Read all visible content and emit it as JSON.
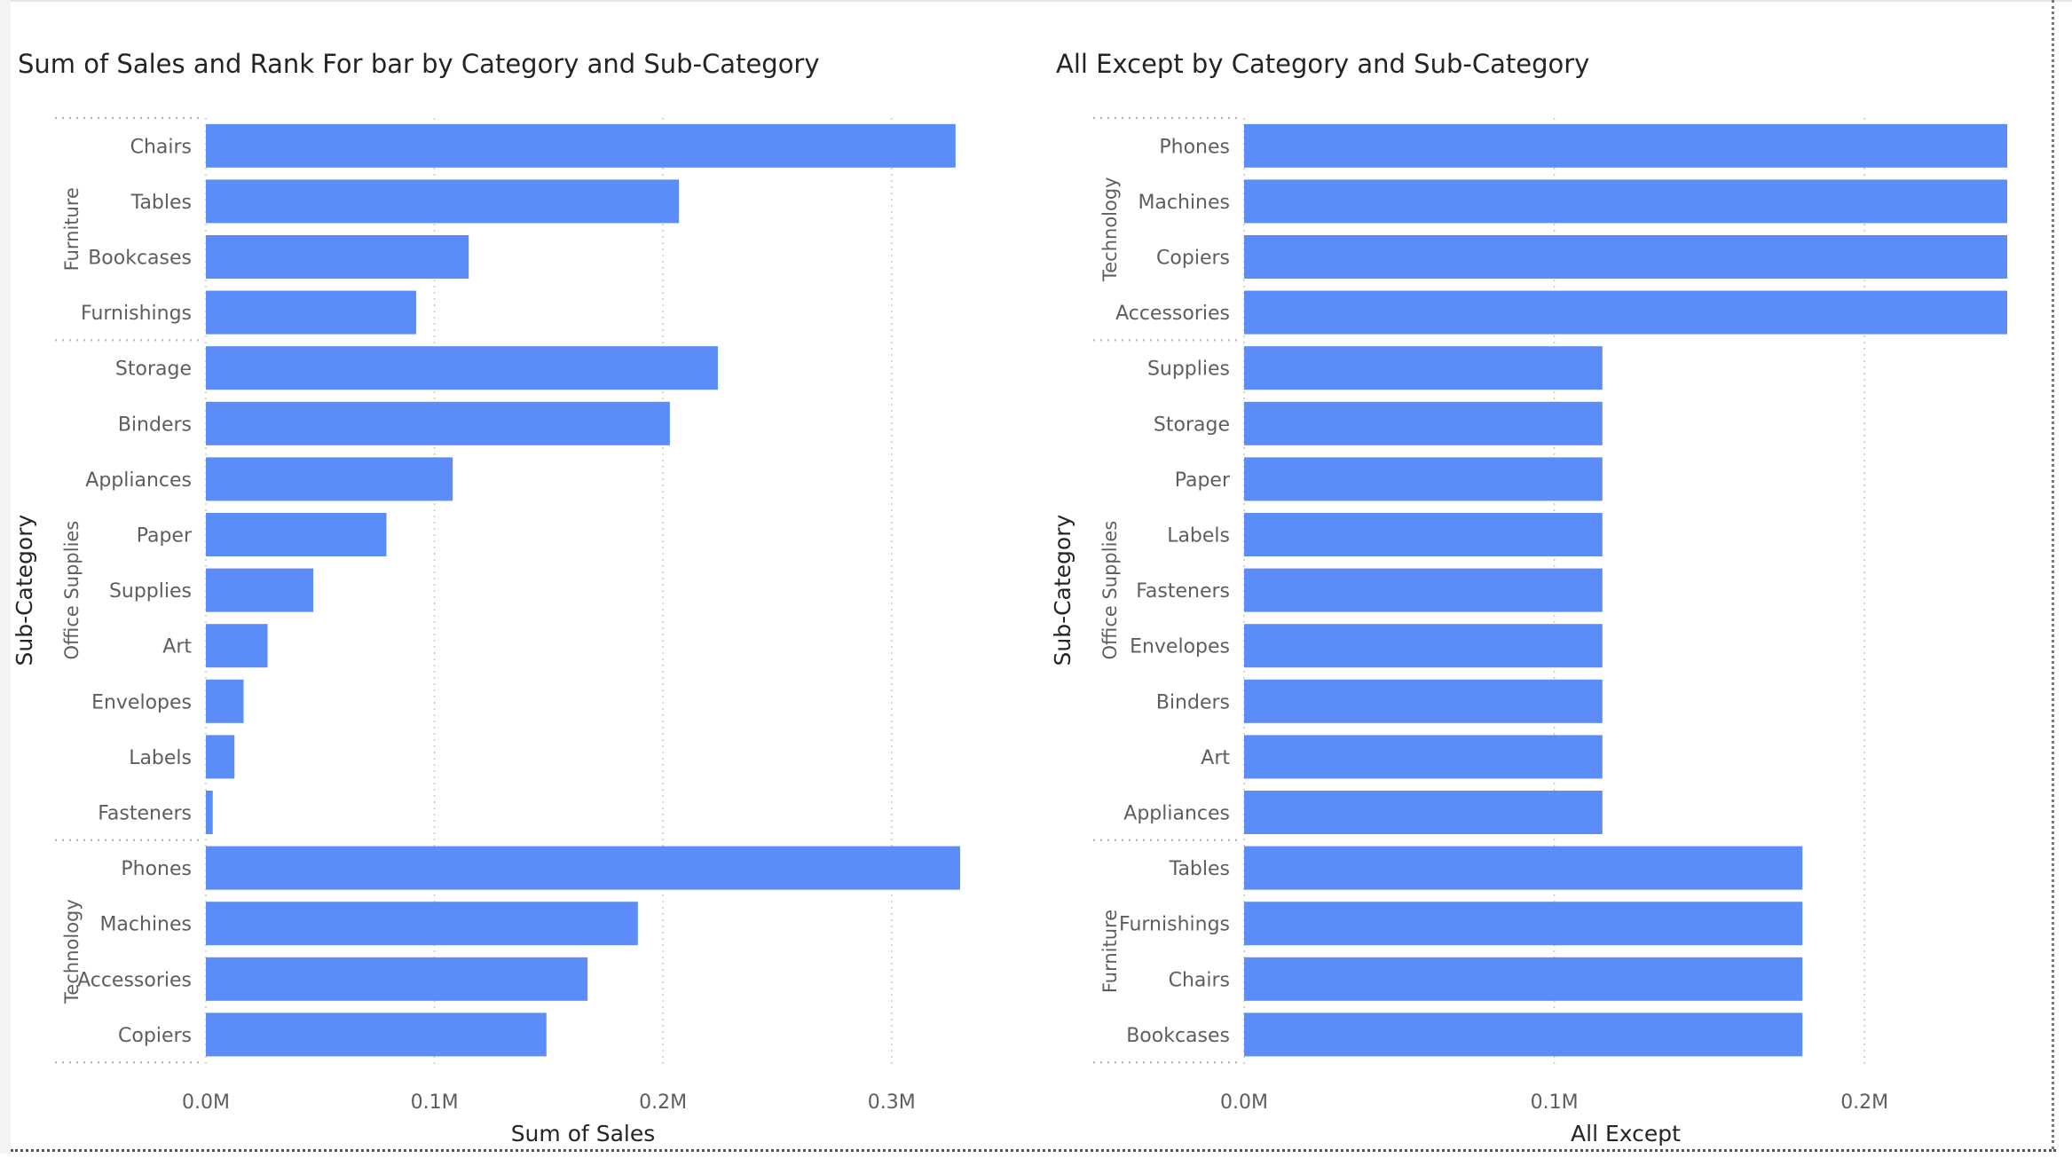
{
  "colors": {
    "bar": "#5b8cf7",
    "text_dark": "#252423",
    "text_label": "#605e5c",
    "grid": "#c8c6c4",
    "divider": "#b3b0ad"
  },
  "chart_data": [
    {
      "type": "bar",
      "orientation": "horizontal",
      "title": "Sum of Sales and Rank For bar by Category and Sub-Category",
      "xlabel": "Sum of Sales",
      "ylabel": "Sub-Category",
      "xlim": [
        0,
        330000
      ],
      "xticks": [
        {
          "value": 0,
          "label": "0.0M"
        },
        {
          "value": 100000,
          "label": "0.1M"
        },
        {
          "value": 200000,
          "label": "0.2M"
        },
        {
          "value": 300000,
          "label": "0.3M"
        }
      ],
      "grid": true,
      "groups": [
        {
          "category": "Furniture",
          "items": [
            {
              "label": "Chairs",
              "value": 328000
            },
            {
              "label": "Tables",
              "value": 207000
            },
            {
              "label": "Bookcases",
              "value": 115000
            },
            {
              "label": "Furnishings",
              "value": 92000
            }
          ]
        },
        {
          "category": "Office Supplies",
          "items": [
            {
              "label": "Storage",
              "value": 224000
            },
            {
              "label": "Binders",
              "value": 203000
            },
            {
              "label": "Appliances",
              "value": 108000
            },
            {
              "label": "Paper",
              "value": 79000
            },
            {
              "label": "Supplies",
              "value": 47000
            },
            {
              "label": "Art",
              "value": 27000
            },
            {
              "label": "Envelopes",
              "value": 16500
            },
            {
              "label": "Labels",
              "value": 12500
            },
            {
              "label": "Fasteners",
              "value": 3000
            }
          ]
        },
        {
          "category": "Technology",
          "items": [
            {
              "label": "Phones",
              "value": 330000
            },
            {
              "label": "Machines",
              "value": 189000
            },
            {
              "label": "Accessories",
              "value": 167000
            },
            {
              "label": "Copiers",
              "value": 149000
            }
          ]
        }
      ]
    },
    {
      "type": "bar",
      "orientation": "horizontal",
      "title": "All Except by Category and Sub-Category",
      "xlabel": "All Except",
      "ylabel": "Sub-Category",
      "xlim": [
        0,
        246000
      ],
      "xticks": [
        {
          "value": 0,
          "label": "0.0M"
        },
        {
          "value": 100000,
          "label": "0.1M"
        },
        {
          "value": 200000,
          "label": "0.2M"
        }
      ],
      "grid": true,
      "groups": [
        {
          "category": "Technology",
          "items": [
            {
              "label": "Phones",
              "value": 246000
            },
            {
              "label": "Machines",
              "value": 246000
            },
            {
              "label": "Copiers",
              "value": 246000
            },
            {
              "label": "Accessories",
              "value": 246000
            }
          ]
        },
        {
          "category": "Office Supplies",
          "items": [
            {
              "label": "Supplies",
              "value": 115500
            },
            {
              "label": "Storage",
              "value": 115500
            },
            {
              "label": "Paper",
              "value": 115500
            },
            {
              "label": "Labels",
              "value": 115500
            },
            {
              "label": "Fasteners",
              "value": 115500
            },
            {
              "label": "Envelopes",
              "value": 115500
            },
            {
              "label": "Binders",
              "value": 115500
            },
            {
              "label": "Art",
              "value": 115500
            },
            {
              "label": "Appliances",
              "value": 115500
            }
          ]
        },
        {
          "category": "Furniture",
          "items": [
            {
              "label": "Tables",
              "value": 180000
            },
            {
              "label": "Furnishings",
              "value": 180000
            },
            {
              "label": "Chairs",
              "value": 180000
            },
            {
              "label": "Bookcases",
              "value": 180000
            }
          ]
        }
      ]
    }
  ]
}
